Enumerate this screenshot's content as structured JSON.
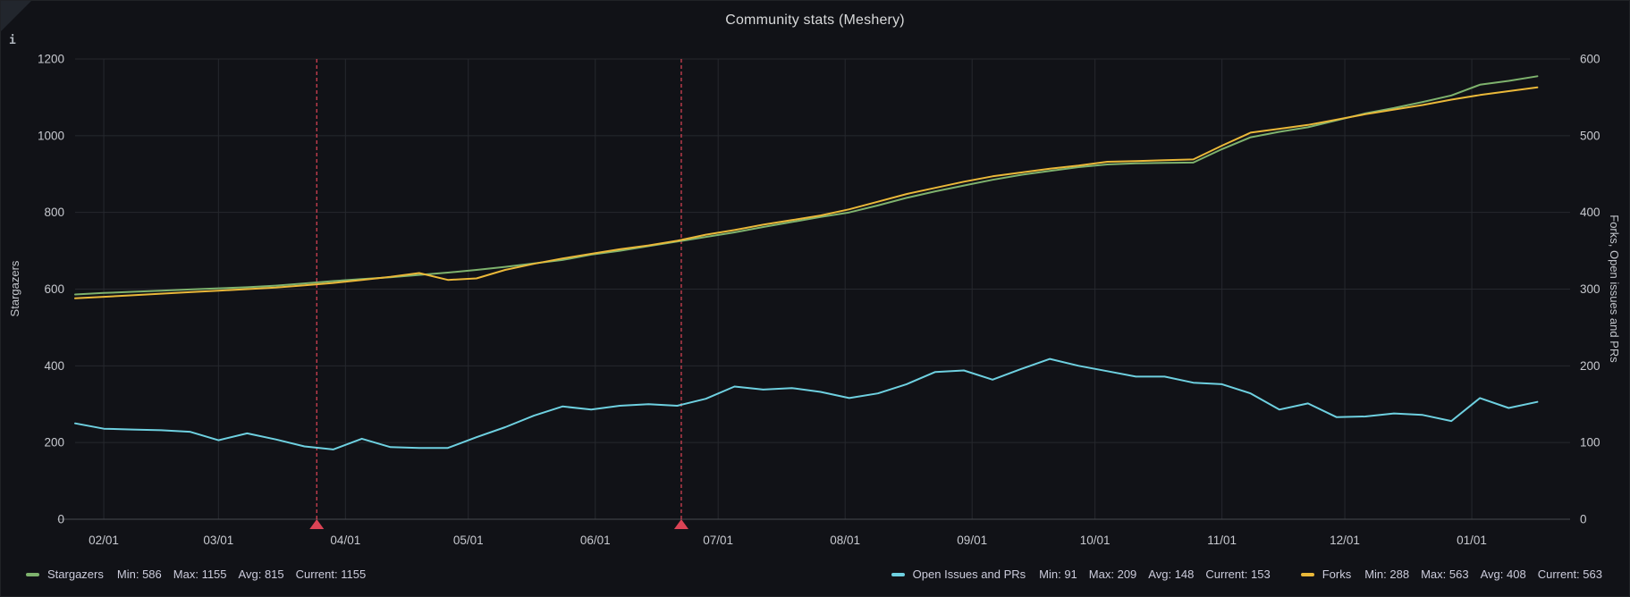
{
  "panel": {
    "title": "Community stats (Meshery)",
    "info_icon": "i"
  },
  "colors": {
    "background": "#111217",
    "grid": "#26282e",
    "axis_line": "#47494f",
    "tick_text": "#c7c9cf",
    "title_text": "#d8d9da",
    "legend_text": "#ccccdc",
    "annotation": "#F2495C"
  },
  "chart_data": {
    "type": "line",
    "title": "Community stats (Meshery)",
    "legend_position": "bottom",
    "grid": true,
    "x_axis": {
      "total_days": 365,
      "start_date": "01/25",
      "ticks": [
        {
          "label": "02/01",
          "day": 7
        },
        {
          "label": "03/01",
          "day": 35
        },
        {
          "label": "04/01",
          "day": 66
        },
        {
          "label": "05/01",
          "day": 96
        },
        {
          "label": "06/01",
          "day": 127
        },
        {
          "label": "07/01",
          "day": 157
        },
        {
          "label": "08/01",
          "day": 188
        },
        {
          "label": "09/01",
          "day": 219
        },
        {
          "label": "10/01",
          "day": 249
        },
        {
          "label": "11/01",
          "day": 280
        },
        {
          "label": "12/01",
          "day": 310
        },
        {
          "label": "01/01",
          "day": 341
        }
      ]
    },
    "y_left": {
      "title": "Stargazers",
      "min": 0,
      "max": 1200,
      "step": 200
    },
    "y_right": {
      "title": "Forks, Open issues and PRs",
      "min": 0,
      "max": 600,
      "step": 100
    },
    "annotations": {
      "color": "#F2495C",
      "vlines_day": [
        59,
        148
      ]
    },
    "sample_interval_days": 7,
    "series": [
      {
        "name": "Stargazers",
        "color": "#7EB26D",
        "axis": "left",
        "values": [
          586,
          590,
          593,
          596,
          599,
          602,
          605,
          609,
          615,
          621,
          626,
          631,
          637,
          643,
          650,
          658,
          667,
          676,
          690,
          700,
          712,
          724,
          736,
          748,
          762,
          775,
          788,
          800,
          818,
          838,
          855,
          870,
          885,
          898,
          908,
          918,
          925,
          928,
          929,
          930,
          965,
          996,
          1010,
          1022,
          1040,
          1058,
          1072,
          1088,
          1105,
          1133,
          1143,
          1155
        ]
      },
      {
        "name": "Open Issues and PRs",
        "color": "#6ED0E0",
        "axis": "right",
        "values": [
          125,
          118,
          117,
          116,
          114,
          103,
          112,
          104,
          95,
          91,
          105,
          94,
          93,
          93,
          107,
          120,
          135,
          147,
          143,
          148,
          150,
          148,
          157,
          173,
          169,
          171,
          166,
          158,
          164,
          176,
          192,
          194,
          182,
          196,
          209,
          200,
          193,
          186,
          186,
          178,
          176,
          164,
          143,
          151,
          133,
          134,
          138,
          136,
          128,
          158,
          145,
          153
        ]
      },
      {
        "name": "Forks",
        "color": "#EAB839",
        "axis": "right",
        "values": [
          288,
          290,
          292,
          294,
          296,
          298,
          300,
          302,
          305,
          308,
          312,
          316,
          321,
          312,
          314,
          325,
          333,
          340,
          346,
          352,
          357,
          363,
          371,
          377,
          384,
          390,
          396,
          404,
          414,
          424,
          432,
          440,
          447,
          452,
          457,
          461,
          466,
          467,
          468,
          469,
          487,
          504,
          509,
          514,
          521,
          528,
          534,
          540,
          547,
          553,
          558,
          563
        ]
      }
    ]
  },
  "legend": {
    "stat_labels": {
      "min": "Min:",
      "max": "Max:",
      "avg": "Avg:",
      "current": "Current:"
    },
    "items": [
      {
        "label": "Stargazers",
        "color": "#7EB26D",
        "min": "586",
        "max": "1155",
        "avg": "815",
        "current": "1155"
      },
      {
        "label": "Open Issues and PRs",
        "color": "#6ED0E0",
        "min": "91",
        "max": "209",
        "avg": "148",
        "current": "153"
      },
      {
        "label": "Forks",
        "color": "#EAB839",
        "min": "288",
        "max": "563",
        "avg": "408",
        "current": "563"
      }
    ]
  }
}
